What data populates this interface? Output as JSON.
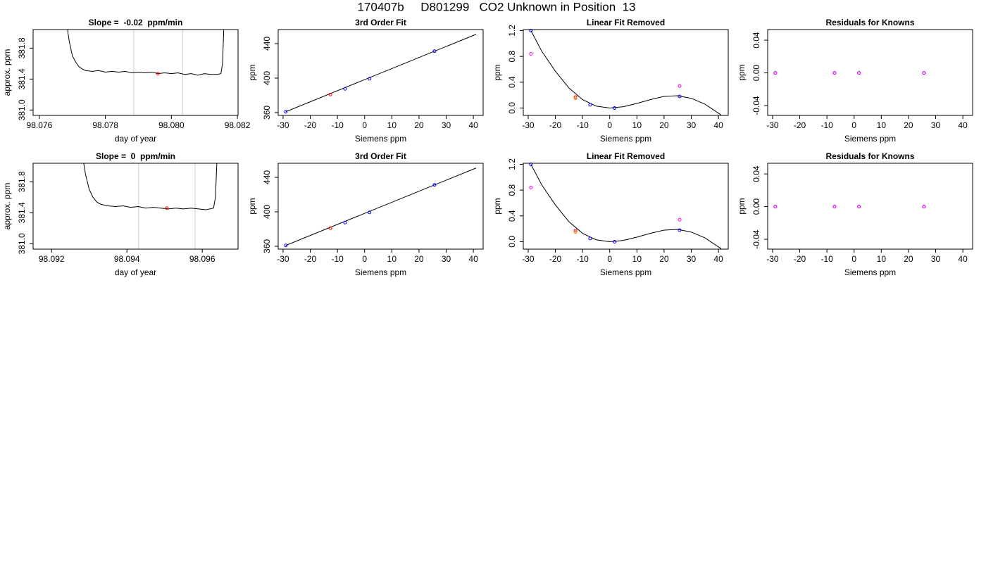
{
  "title": "170407b     D801299   CO2 Unknown in Position  13",
  "chart_data": [
    {
      "type": "line",
      "title": "Slope =  -0.02  ppm/min",
      "xlabel": "day of year",
      "ylabel": "approx. ppm",
      "xlim": [
        98.07581,
        98.08202
      ],
      "ylim": [
        380.93,
        382.04
      ],
      "xticks": [
        98.076,
        98.078,
        {
          "value": 98.08,
          "label": "98.080"
        },
        98.082
      ],
      "yticks": [
        {
          "value": 381,
          "label": "381.0"
        },
        381.4,
        381.8
      ],
      "vlines": [
        98.07886,
        98.08034
      ],
      "vline_color": "#cccccc",
      "series": [
        {
          "style": "line",
          "color": "#000000",
          "x": [
            98.0768,
            98.0769,
            98.077,
            98.0771,
            98.0772,
            98.0773,
            98.0774,
            98.0776,
            98.0778,
            98.078,
            98.0782,
            98.0784,
            98.0786,
            98.0788,
            98.079,
            98.0792,
            98.0794,
            98.0796,
            98.0798,
            98.08,
            98.0802,
            98.0804,
            98.0806,
            98.0808,
            98.081,
            98.0812,
            98.0814,
            98.0815,
            98.08155,
            98.0816
          ],
          "values": [
            382.2,
            381.9,
            381.7,
            381.62,
            381.56,
            381.53,
            381.51,
            381.5,
            381.51,
            381.49,
            381.5,
            381.49,
            381.5,
            381.48,
            381.49,
            381.48,
            381.49,
            381.47,
            381.48,
            381.47,
            381.48,
            381.46,
            381.47,
            381.45,
            381.47,
            381.46,
            381.46,
            381.47,
            381.6,
            382.2
          ]
        },
        {
          "style": "points",
          "color": "#ff0000",
          "x": [
            98.07959
          ],
          "values": [
            381.47
          ]
        }
      ]
    },
    {
      "type": "scatter",
      "title": "3rd Order Fit",
      "xlabel": "Siemens ppm",
      "ylabel": "ppm",
      "xlim": [
        -31.8,
        43.6
      ],
      "ylim": [
        356.7,
        456.3
      ],
      "xticks": [
        -30,
        -20,
        -10,
        0,
        10,
        20,
        30,
        40
      ],
      "yticks": [
        360,
        400,
        440
      ],
      "series": [
        {
          "style": "line",
          "color": "#000000",
          "x": [
            -29,
            41
          ],
          "values": [
            361.0,
            450.8
          ]
        },
        {
          "style": "points",
          "color": "#0000ff",
          "x": [
            -29,
            -7.2,
            1.8,
            25.7
          ],
          "values": [
            361,
            387.5,
            399.3,
            431.2
          ]
        },
        {
          "style": "points",
          "color": "#ff0000",
          "x": [
            -12.6
          ],
          "values": [
            381
          ]
        }
      ]
    },
    {
      "type": "scatter",
      "title": "Linear Fit Removed",
      "xlabel": "Siemens ppm",
      "ylabel": "ppm",
      "xlim": [
        -31.8,
        43.6
      ],
      "ylim": [
        -0.115,
        1.216
      ],
      "xticks": [
        -30,
        -20,
        -10,
        0,
        10,
        20,
        30,
        40
      ],
      "yticks": [
        {
          "value": 0,
          "label": "0.0"
        },
        0.4,
        0.8,
        1.2
      ],
      "series": [
        {
          "style": "line",
          "color": "#000000",
          "x": [
            -29,
            -25,
            -20,
            -15,
            -10,
            -5,
            0,
            5,
            10,
            15,
            20,
            25,
            30,
            35,
            40,
            41
          ],
          "values": [
            1.2,
            0.88,
            0.57,
            0.31,
            0.13,
            0.03,
            0.0,
            0.02,
            0.07,
            0.13,
            0.18,
            0.19,
            0.15,
            0.06,
            -0.08,
            -0.11
          ]
        },
        {
          "style": "points",
          "color": "#0000ff",
          "x": [
            -29,
            -7.2,
            1.8,
            25.7
          ],
          "values": [
            1.2,
            0.05,
            0.0,
            0.18
          ]
        },
        {
          "style": "points",
          "color": "#ff00ff",
          "x": [
            -29,
            25.7
          ],
          "values": [
            0.84,
            0.34
          ]
        },
        {
          "style": "points",
          "color": "#ff0000",
          "x": [
            -12.6
          ],
          "values": [
            0.17
          ]
        },
        {
          "style": "points",
          "color": "#ff8c00",
          "x": [
            -12.6
          ],
          "values": [
            0.15
          ]
        }
      ]
    },
    {
      "type": "scatter",
      "title": "Residuals for Knowns",
      "xlabel": "Siemens ppm",
      "ylabel": "ppm",
      "xlim": [
        -31.8,
        43.6
      ],
      "ylim": [
        -0.052,
        0.053
      ],
      "xticks": [
        -30,
        -20,
        -10,
        0,
        10,
        20,
        30,
        40
      ],
      "yticks": [
        -0.04,
        {
          "value": 0,
          "label": "0.00"
        },
        0.04
      ],
      "series": [
        {
          "style": "points",
          "color": "#0000ff",
          "x": [
            -29,
            -7.2,
            1.8,
            25.7
          ],
          "values": [
            0,
            0,
            0,
            0
          ]
        },
        {
          "style": "points",
          "color": "#ff00ff",
          "x": [
            -29,
            -7.2,
            1.8,
            25.7
          ],
          "values": [
            0,
            0,
            0,
            0
          ]
        }
      ]
    },
    {
      "type": "line",
      "title": "Slope =  0  ppm/min",
      "xlabel": "day of year",
      "ylabel": "approx. ppm",
      "xlim": [
        98.09151,
        98.09695
      ],
      "ylim": [
        380.93,
        382.04
      ],
      "xticks": [
        98.092,
        98.094,
        98.096
      ],
      "yticks": [
        {
          "value": 381,
          "label": "381.0"
        },
        381.4,
        381.8
      ],
      "vlines": [
        98.09431,
        98.09581
      ],
      "vline_color": "#cccccc",
      "series": [
        {
          "style": "line",
          "color": "#000000",
          "x": [
            98.0928,
            98.0929,
            98.093,
            98.0931,
            98.0932,
            98.0933,
            98.0934,
            98.0935,
            98.0937,
            98.0939,
            98.0941,
            98.0943,
            98.0945,
            98.0947,
            98.0949,
            98.0951,
            98.0953,
            98.0955,
            98.0957,
            98.0959,
            98.0961,
            98.0963,
            98.09635,
            98.0964
          ],
          "values": [
            382.2,
            381.9,
            381.7,
            381.6,
            381.54,
            381.51,
            381.5,
            381.49,
            381.48,
            381.49,
            381.47,
            381.48,
            381.46,
            381.47,
            381.46,
            381.45,
            381.46,
            381.45,
            381.46,
            381.45,
            381.44,
            381.46,
            381.6,
            382.2
          ]
        },
        {
          "style": "points",
          "color": "#ff0000",
          "x": [
            98.09506
          ],
          "values": [
            381.46
          ]
        }
      ]
    },
    {
      "type": "scatter",
      "title": "3rd Order Fit",
      "xlabel": "Siemens ppm",
      "ylabel": "ppm",
      "xlim": [
        -31.8,
        43.6
      ],
      "ylim": [
        356.7,
        456.3
      ],
      "xticks": [
        -30,
        -20,
        -10,
        0,
        10,
        20,
        30,
        40
      ],
      "yticks": [
        360,
        400,
        440
      ],
      "series": [
        {
          "style": "line",
          "color": "#000000",
          "x": [
            -29,
            41
          ],
          "values": [
            361.0,
            450.8
          ]
        },
        {
          "style": "points",
          "color": "#0000ff",
          "x": [
            -29,
            -7.2,
            1.8,
            25.7
          ],
          "values": [
            361,
            387.5,
            399.3,
            431.2
          ]
        },
        {
          "style": "points",
          "color": "#ff0000",
          "x": [
            -12.6
          ],
          "values": [
            381
          ]
        }
      ]
    },
    {
      "type": "scatter",
      "title": "Linear Fit Removed",
      "xlabel": "Siemens ppm",
      "ylabel": "ppm",
      "xlim": [
        -31.8,
        43.6
      ],
      "ylim": [
        -0.115,
        1.216
      ],
      "xticks": [
        -30,
        -20,
        -10,
        0,
        10,
        20,
        30,
        40
      ],
      "yticks": [
        {
          "value": 0,
          "label": "0.0"
        },
        0.4,
        0.8,
        1.2
      ],
      "series": [
        {
          "style": "line",
          "color": "#000000",
          "x": [
            -29,
            -25,
            -20,
            -15,
            -10,
            -5,
            0,
            5,
            10,
            15,
            20,
            25,
            30,
            35,
            40,
            41
          ],
          "values": [
            1.2,
            0.88,
            0.57,
            0.31,
            0.13,
            0.03,
            0.0,
            0.02,
            0.07,
            0.13,
            0.18,
            0.19,
            0.15,
            0.06,
            -0.08,
            -0.11
          ]
        },
        {
          "style": "points",
          "color": "#0000ff",
          "x": [
            -29,
            -7.2,
            1.8,
            25.7
          ],
          "values": [
            1.2,
            0.05,
            0.0,
            0.18
          ]
        },
        {
          "style": "points",
          "color": "#ff00ff",
          "x": [
            -29,
            25.7
          ],
          "values": [
            0.84,
            0.34
          ]
        },
        {
          "style": "points",
          "color": "#ff0000",
          "x": [
            -12.6
          ],
          "values": [
            0.17
          ]
        },
        {
          "style": "points",
          "color": "#ff8c00",
          "x": [
            -12.6
          ],
          "values": [
            0.15
          ]
        }
      ]
    },
    {
      "type": "scatter",
      "title": "Residuals for Knowns",
      "xlabel": "Siemens ppm",
      "ylabel": "ppm",
      "xlim": [
        -31.8,
        43.6
      ],
      "ylim": [
        -0.052,
        0.053
      ],
      "xticks": [
        -30,
        -20,
        -10,
        0,
        10,
        20,
        30,
        40
      ],
      "yticks": [
        -0.04,
        {
          "value": 0,
          "label": "0.00"
        },
        0.04
      ],
      "series": [
        {
          "style": "points",
          "color": "#0000ff",
          "x": [
            -29,
            -7.2,
            1.8,
            25.7
          ],
          "values": [
            0,
            0,
            0,
            0
          ]
        },
        {
          "style": "points",
          "color": "#ff00ff",
          "x": [
            -29,
            -7.2,
            1.8,
            25.7
          ],
          "values": [
            0,
            0,
            0,
            0
          ]
        }
      ]
    }
  ]
}
